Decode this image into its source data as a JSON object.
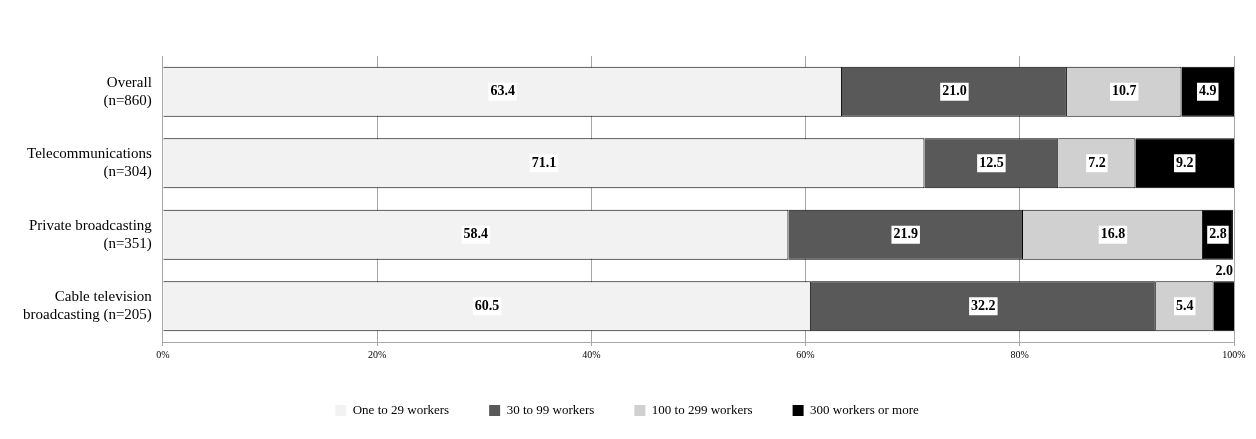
{
  "chart_data": {
    "type": "bar",
    "orientation": "horizontal",
    "stacked": true,
    "categories": [
      "Overall\n(n=860)",
      "Telecommunications\n(n=304)",
      "Private broadcasting\n(n=351)",
      "Cable television\nbroadcasting (n=205)"
    ],
    "series": [
      {
        "name": "One to 29 workers",
        "color": "#f2f2f2",
        "values": [
          63.4,
          71.1,
          58.4,
          60.5
        ],
        "value_labels": [
          "63.4",
          "71.1",
          "58.4",
          "60.5"
        ]
      },
      {
        "name": "30 to 99 workers",
        "color": "#595959",
        "values": [
          21.0,
          12.5,
          21.9,
          32.2
        ],
        "value_labels": [
          "21.0",
          "12.5",
          "21.9",
          "32.2"
        ]
      },
      {
        "name": "100 to 299 workers",
        "color": "#d0d0d0",
        "values": [
          10.7,
          7.2,
          16.8,
          5.4
        ],
        "value_labels": [
          "10.7",
          "7.2",
          "16.8",
          "5.4"
        ]
      },
      {
        "name": "300 workers or more",
        "color": "#000000",
        "values": [
          4.9,
          9.2,
          2.8,
          2.0
        ],
        "value_labels": [
          "4.9",
          "9.2",
          "2.8",
          "2.0"
        ]
      }
    ],
    "xlim": [
      0,
      100
    ],
    "xticks": [
      {
        "value": 0,
        "label": "0%"
      },
      {
        "value": 20,
        "label": "20%"
      },
      {
        "value": 40,
        "label": "40%"
      },
      {
        "value": 60,
        "label": "60%"
      },
      {
        "value": 80,
        "label": "80%"
      },
      {
        "value": 100,
        "label": "100%"
      }
    ],
    "grid": "x",
    "legend": "bottom"
  }
}
